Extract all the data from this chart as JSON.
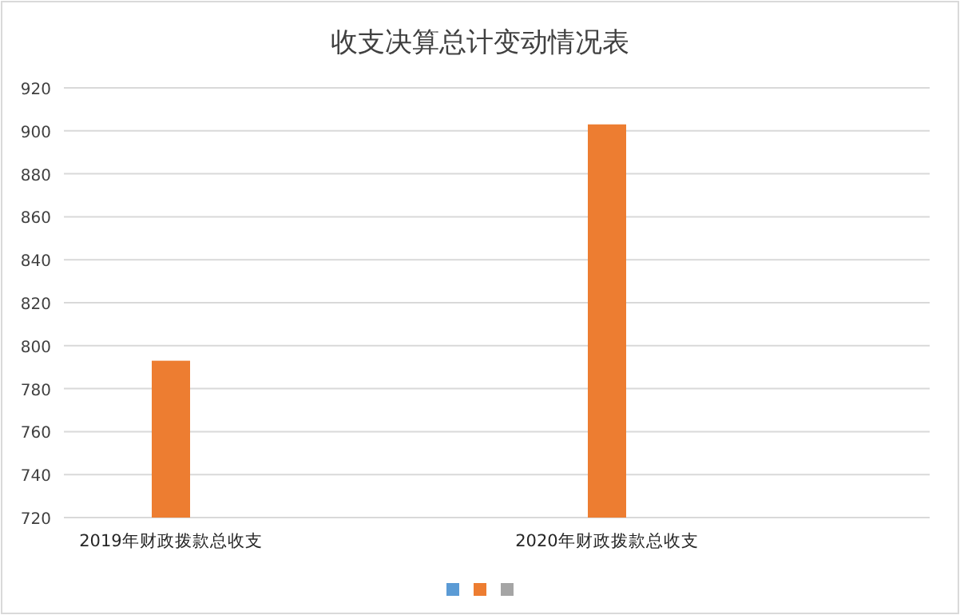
{
  "chart_data": {
    "type": "bar",
    "title": "收支决算总计变动情况表",
    "categories": [
      "2019年财政拨款总收支",
      "2020年财政拨款总收支"
    ],
    "series": [
      {
        "color": "#5b9bd5",
        "values": [
          null,
          null
        ]
      },
      {
        "color": "#ed7d31",
        "values": [
          793,
          903
        ]
      },
      {
        "color": "#a5a5a5",
        "values": [
          null,
          null
        ]
      }
    ],
    "ylim": [
      720,
      920
    ],
    "yticks": [
      720,
      740,
      760,
      780,
      800,
      820,
      840,
      860,
      880,
      900,
      920
    ],
    "grid": "y"
  }
}
